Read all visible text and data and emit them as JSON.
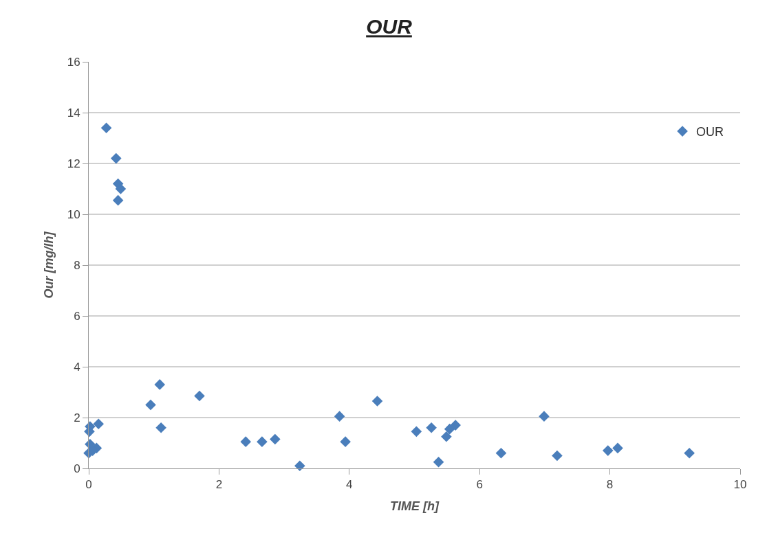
{
  "chart_data": {
    "type": "scatter",
    "title": "OUR",
    "xlabel": "TIME [h]",
    "ylabel": "Our [mg/lh]",
    "series": [
      {
        "name": "OUR",
        "color": "#4a7ebb",
        "x": [
          0.27,
          0.42,
          0.45,
          0.49,
          0.45,
          0.95,
          1.09,
          1.11,
          1.7,
          2.41,
          2.66,
          2.86,
          3.24,
          3.85,
          3.94,
          4.43,
          5.03,
          5.26,
          5.37,
          5.49,
          5.54,
          5.63,
          6.33,
          6.99,
          7.19,
          7.97,
          8.12,
          9.22,
          0.02,
          0.15,
          0.01,
          0.02,
          0.12,
          0.0,
          0.06
        ],
        "values": [
          13.4,
          12.2,
          11.2,
          11.0,
          10.55,
          2.5,
          3.3,
          1.6,
          2.85,
          1.05,
          1.05,
          1.15,
          0.1,
          2.05,
          1.05,
          2.65,
          1.45,
          1.6,
          0.25,
          1.25,
          1.55,
          1.7,
          0.6,
          2.05,
          0.5,
          0.7,
          0.8,
          0.6,
          1.65,
          1.75,
          1.45,
          0.95,
          0.8,
          0.6,
          0.7
        ]
      }
    ],
    "xlim": [
      0,
      10
    ],
    "xticks": [
      0,
      2,
      4,
      6,
      8,
      10
    ],
    "ylim": [
      0,
      16
    ],
    "yticks": [
      0,
      2,
      4,
      6,
      8,
      10,
      12,
      14,
      16
    ],
    "grid": "y",
    "legend": "top right",
    "marker": "diamond"
  }
}
